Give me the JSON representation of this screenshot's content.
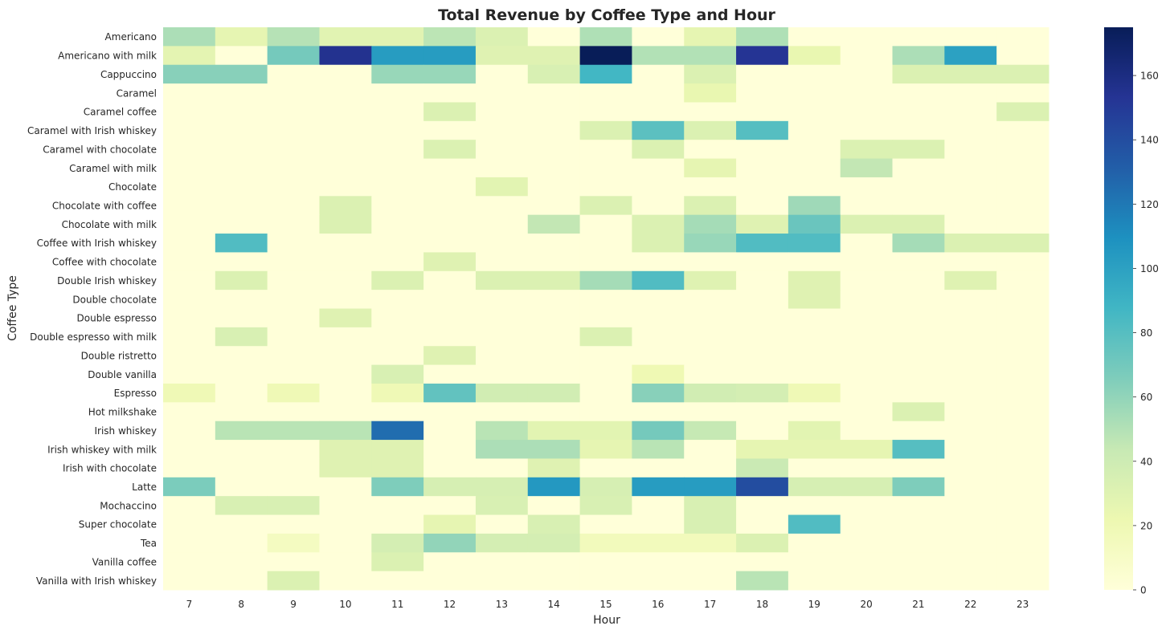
{
  "chart_data": {
    "type": "heatmap",
    "title": "Total Revenue by Coffee Type and Hour",
    "xlabel": "Hour",
    "ylabel": "Coffee Type",
    "x": [
      "7",
      "8",
      "9",
      "10",
      "11",
      "12",
      "13",
      "14",
      "15",
      "16",
      "17",
      "18",
      "19",
      "20",
      "21",
      "22",
      "23"
    ],
    "y": [
      "Americano",
      "Americano with milk",
      "Cappuccino",
      "Caramel",
      "Caramel coffee",
      "Caramel with Irish whiskey",
      "Caramel with chocolate",
      "Caramel with milk",
      "Chocolate",
      "Chocolate with coffee",
      "Chocolate with milk",
      "Coffee with Irish whiskey",
      "Coffee with chocolate",
      "Double Irish whiskey",
      "Double chocolate",
      "Double espresso",
      "Double espresso with milk",
      "Double ristretto",
      "Double vanilla",
      "Espresso",
      "Hot milkshake",
      "Irish whiskey",
      "Irish whiskey with milk",
      "Irish with chocolate",
      "Latte",
      "Mochaccino",
      "Super chocolate",
      "Tea",
      "Vanilla coffee",
      "Vanilla with Irish whiskey"
    ],
    "values": [
      [
        52,
        26,
        49,
        29,
        29,
        47,
        32,
        0,
        51,
        0,
        26,
        51,
        0,
        0,
        0,
        0,
        0
      ],
      [
        27,
        0,
        69,
        155,
        103,
        103,
        30,
        30,
        175,
        50,
        50,
        153,
        24,
        0,
        52,
        100,
        0
      ],
      [
        63,
        63,
        0,
        0,
        58,
        58,
        0,
        34,
        87,
        0,
        32,
        0,
        0,
        0,
        32,
        32,
        32
      ],
      [
        0,
        0,
        0,
        0,
        0,
        0,
        0,
        0,
        0,
        0,
        24,
        0,
        0,
        0,
        0,
        0,
        0
      ],
      [
        0,
        0,
        0,
        0,
        0,
        32,
        0,
        0,
        0,
        0,
        0,
        0,
        0,
        0,
        0,
        0,
        32
      ],
      [
        0,
        0,
        0,
        0,
        0,
        0,
        0,
        0,
        32,
        78,
        32,
        80,
        0,
        0,
        0,
        0,
        0
      ],
      [
        0,
        0,
        0,
        0,
        0,
        32,
        0,
        0,
        0,
        32,
        0,
        0,
        0,
        32,
        32,
        0,
        0
      ],
      [
        0,
        0,
        0,
        0,
        0,
        0,
        0,
        0,
        0,
        0,
        26,
        0,
        0,
        45,
        0,
        0,
        0
      ],
      [
        0,
        0,
        0,
        0,
        0,
        0,
        28,
        0,
        0,
        0,
        0,
        0,
        0,
        0,
        0,
        0,
        0
      ],
      [
        0,
        0,
        0,
        32,
        0,
        0,
        0,
        0,
        32,
        0,
        32,
        0,
        56,
        0,
        0,
        0,
        0
      ],
      [
        0,
        0,
        0,
        32,
        0,
        0,
        0,
        45,
        0,
        32,
        54,
        30,
        73,
        32,
        32,
        0,
        0
      ],
      [
        0,
        82,
        0,
        0,
        0,
        0,
        0,
        0,
        0,
        32,
        58,
        82,
        82,
        0,
        54,
        32,
        32
      ],
      [
        0,
        0,
        0,
        0,
        0,
        30,
        0,
        0,
        0,
        0,
        0,
        0,
        0,
        0,
        0,
        0,
        0
      ],
      [
        0,
        32,
        0,
        0,
        32,
        0,
        32,
        32,
        54,
        82,
        30,
        0,
        30,
        0,
        0,
        30,
        0
      ],
      [
        0,
        0,
        0,
        0,
        0,
        0,
        0,
        0,
        0,
        0,
        0,
        0,
        30,
        0,
        0,
        0,
        0
      ],
      [
        0,
        0,
        0,
        30,
        0,
        0,
        0,
        0,
        0,
        0,
        0,
        0,
        0,
        0,
        0,
        0,
        0
      ],
      [
        0,
        34,
        0,
        0,
        0,
        0,
        0,
        0,
        32,
        0,
        0,
        0,
        0,
        0,
        0,
        0,
        0
      ],
      [
        0,
        0,
        0,
        0,
        0,
        30,
        0,
        0,
        0,
        0,
        0,
        0,
        0,
        0,
        0,
        0,
        0
      ],
      [
        0,
        0,
        0,
        0,
        34,
        0,
        0,
        0,
        0,
        20,
        0,
        0,
        0,
        0,
        0,
        0,
        0
      ],
      [
        19,
        0,
        19,
        0,
        19,
        76,
        38,
        38,
        0,
        63,
        38,
        36,
        19,
        0,
        0,
        0,
        0
      ],
      [
        0,
        0,
        0,
        0,
        0,
        0,
        0,
        0,
        0,
        0,
        0,
        0,
        0,
        0,
        32,
        0,
        0
      ],
      [
        0,
        48,
        48,
        48,
        125,
        0,
        48,
        28,
        28,
        69,
        44,
        0,
        28,
        0,
        0,
        0,
        0
      ],
      [
        0,
        0,
        0,
        30,
        30,
        0,
        52,
        52,
        26,
        48,
        0,
        26,
        26,
        26,
        80,
        0,
        0
      ],
      [
        0,
        0,
        0,
        30,
        30,
        0,
        0,
        30,
        0,
        0,
        0,
        42,
        0,
        0,
        0,
        0,
        0
      ],
      [
        67,
        0,
        0,
        0,
        66,
        35,
        35,
        105,
        35,
        103,
        103,
        140,
        35,
        35,
        66,
        0,
        0
      ],
      [
        0,
        34,
        34,
        0,
        0,
        0,
        34,
        0,
        34,
        0,
        34,
        0,
        0,
        0,
        0,
        0,
        0
      ],
      [
        0,
        0,
        0,
        0,
        0,
        26,
        0,
        34,
        0,
        0,
        34,
        0,
        82,
        0,
        0,
        0,
        0
      ],
      [
        0,
        0,
        13,
        0,
        36,
        60,
        36,
        36,
        16,
        16,
        16,
        32,
        0,
        0,
        0,
        0,
        0
      ],
      [
        0,
        0,
        0,
        0,
        32,
        0,
        0,
        0,
        0,
        0,
        0,
        0,
        0,
        0,
        0,
        0,
        0
      ],
      [
        0,
        0,
        32,
        0,
        0,
        0,
        0,
        0,
        0,
        0,
        0,
        48,
        0,
        0,
        0,
        0,
        0
      ]
    ],
    "colorbar": {
      "min": 0,
      "max": 175,
      "ticks": [
        0,
        20,
        40,
        60,
        80,
        100,
        120,
        140,
        160
      ],
      "colormap": "YlGnBu"
    },
    "grid": false
  }
}
